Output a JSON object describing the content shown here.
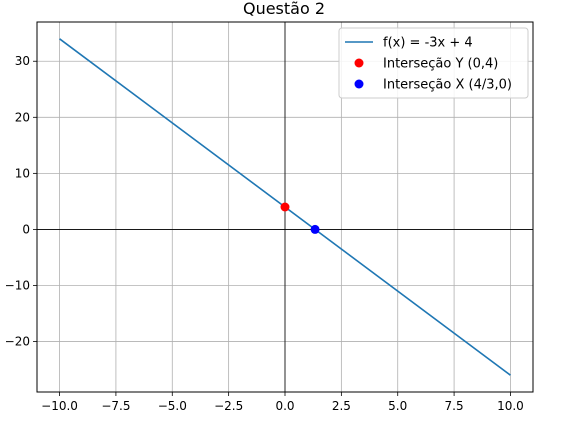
{
  "chart_data": {
    "type": "line",
    "title": "Questão 2",
    "xlabel": "",
    "ylabel": "",
    "xlim": [
      -11,
      11
    ],
    "ylim": [
      -29,
      37
    ],
    "grid": true,
    "legend_placement": "top-right",
    "x_ticks": [
      {
        "value": -10,
        "label": "−10.0"
      },
      {
        "value": -7.5,
        "label": "−7.5"
      },
      {
        "value": -5,
        "label": "−5.0"
      },
      {
        "value": -2.5,
        "label": "−2.5"
      },
      {
        "value": 0,
        "label": "0.0"
      },
      {
        "value": 2.5,
        "label": "2.5"
      },
      {
        "value": 5,
        "label": "5.0"
      },
      {
        "value": 7.5,
        "label": "7.5"
      },
      {
        "value": 10,
        "label": "10.0"
      }
    ],
    "y_ticks": [
      {
        "value": 30,
        "label": "30"
      },
      {
        "value": 20,
        "label": "20"
      },
      {
        "value": 10,
        "label": "10"
      },
      {
        "value": 0,
        "label": "0"
      },
      {
        "value": -10,
        "label": "−10"
      },
      {
        "value": -20,
        "label": "−20"
      }
    ],
    "series": [
      {
        "name": "f(x) = -3x + 4",
        "kind": "line",
        "color": "#1f77b4",
        "x": [
          -10,
          10
        ],
        "y": [
          34,
          -26
        ]
      },
      {
        "name": "Interseção Y (0,4)",
        "kind": "point",
        "color": "#ff0000",
        "x": [
          0
        ],
        "y": [
          4
        ]
      },
      {
        "name": "Interseção X (4/3,0)",
        "kind": "point",
        "color": "#0000ff",
        "x": [
          1.3333
        ],
        "y": [
          0
        ]
      }
    ]
  }
}
